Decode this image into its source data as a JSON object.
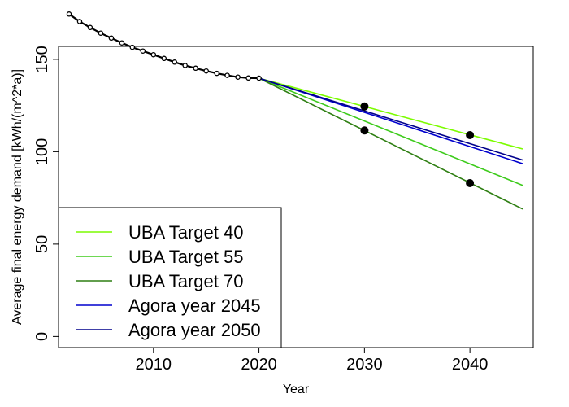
{
  "chart_data": {
    "type": "line",
    "title": "",
    "xlabel": "Year",
    "ylabel": "Average final energy demand [kWh/(m^2*a)]",
    "xlim": [
      2001,
      2046
    ],
    "ylim": [
      -6,
      157
    ],
    "xticks": [
      2010,
      2020,
      2030,
      2040
    ],
    "yticks": [
      0,
      50,
      100,
      150
    ],
    "grid": false,
    "legend_position": "bottom-left",
    "historical": {
      "name": "",
      "color": "#000000",
      "x": [
        2002,
        2003,
        2004,
        2005,
        2006,
        2007,
        2008,
        2009,
        2010,
        2011,
        2012,
        2013,
        2014,
        2015,
        2016,
        2017,
        2018,
        2019,
        2020
      ],
      "y": [
        174.5,
        170.5,
        167.2,
        164.2,
        161.5,
        158.9,
        156.5,
        154.5,
        152.5,
        150.5,
        148.5,
        146.7,
        145.2,
        143.7,
        142.4,
        141.3,
        140.4,
        139.9,
        139.8
      ]
    },
    "series": [
      {
        "name": "UBA Target 40",
        "color": "#7cfc00",
        "x": [
          2020,
          2045
        ],
        "y": [
          139.8,
          101.5
        ]
      },
      {
        "name": "UBA Target 55",
        "color": "#3ecb1c",
        "x": [
          2020,
          2045
        ],
        "y": [
          139.8,
          81.8
        ]
      },
      {
        "name": "UBA Target 70",
        "color": "#2f7f13",
        "x": [
          2020,
          2045
        ],
        "y": [
          139.8,
          69.0
        ]
      },
      {
        "name": "Agora year 2045",
        "color": "#0000cd",
        "x": [
          2020,
          2045
        ],
        "y": [
          139.8,
          93.5
        ]
      },
      {
        "name": "Agora year 2050",
        "color": "#00008b",
        "x": [
          2020,
          2045
        ],
        "y": [
          139.8,
          95.5
        ]
      }
    ],
    "highlight_points": [
      {
        "x": 2030,
        "y": 124.5
      },
      {
        "x": 2030,
        "y": 111.5
      },
      {
        "x": 2040,
        "y": 109.0
      },
      {
        "x": 2040,
        "y": 83.0
      }
    ]
  }
}
